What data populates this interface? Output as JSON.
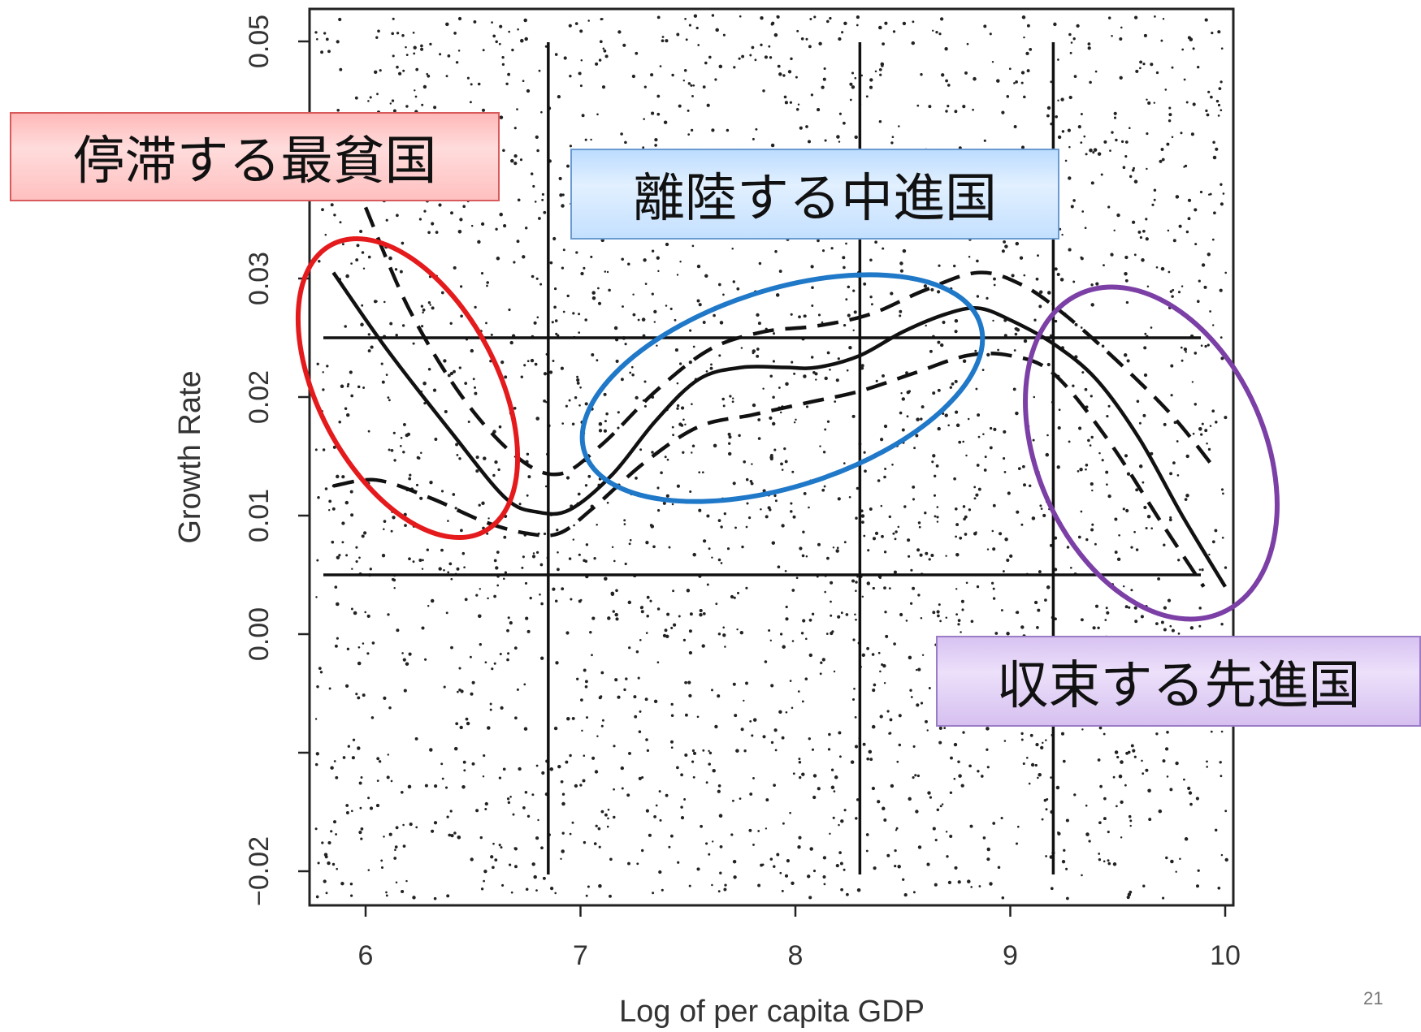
{
  "chart_data": {
    "type": "scatter",
    "xlabel": "Log of per capita GDP",
    "ylabel": "Growth Rate",
    "xlim": [
      5.75,
      10.05
    ],
    "ylim": [
      -0.022,
      0.053
    ],
    "x_ticks": [
      "6",
      "7",
      "8",
      "9",
      "10"
    ],
    "y_ticks": [
      "−0.02",
      "0.00",
      "0.01",
      "0.02",
      "0.03",
      "0.05"
    ],
    "vertical_lines_x": [
      6.85,
      8.3,
      9.2
    ],
    "horizontal_lines_y": [
      0.025,
      0.005
    ],
    "grid": false,
    "legend": "none",
    "series": [
      {
        "line_style": "solid",
        "x": [
          5.85,
          6.1,
          6.4,
          6.65,
          6.8,
          6.95,
          7.15,
          7.35,
          7.55,
          7.75,
          7.95,
          8.1,
          8.3,
          8.5,
          8.7,
          8.85,
          9.0,
          9.2,
          9.4,
          9.6,
          9.8,
          10.0
        ],
        "y": [
          0.0305,
          0.024,
          0.017,
          0.0115,
          0.0103,
          0.0105,
          0.0135,
          0.018,
          0.0215,
          0.0225,
          0.0225,
          0.0225,
          0.0235,
          0.0255,
          0.027,
          0.0275,
          0.0265,
          0.0245,
          0.0215,
          0.0165,
          0.01,
          0.004
        ]
      },
      {
        "line_style": "dashed",
        "x": [
          5.85,
          6.05,
          6.3,
          6.55,
          6.75,
          6.9,
          7.05,
          7.3,
          7.55,
          7.8,
          8.05,
          8.3,
          8.55,
          8.8,
          9.0,
          9.2,
          9.45,
          9.7,
          9.9
        ],
        "y": [
          0.0125,
          0.013,
          0.0115,
          0.0095,
          0.0085,
          0.0085,
          0.0105,
          0.0145,
          0.0175,
          0.0185,
          0.0195,
          0.0205,
          0.022,
          0.0235,
          0.0235,
          0.022,
          0.0165,
          0.0095,
          0.004
        ]
      },
      {
        "line_style": "dashed",
        "x": [
          6.0,
          6.2,
          6.45,
          6.7,
          6.9,
          7.1,
          7.35,
          7.6,
          7.85,
          8.1,
          8.35,
          8.6,
          8.85,
          9.05,
          9.25,
          9.5,
          9.75,
          9.95
        ],
        "y": [
          0.036,
          0.0275,
          0.02,
          0.015,
          0.0135,
          0.016,
          0.0205,
          0.024,
          0.0255,
          0.026,
          0.027,
          0.029,
          0.0305,
          0.0295,
          0.027,
          0.023,
          0.0185,
          0.014
        ]
      }
    ],
    "annotations": [
      {
        "text": "停滞する最貧国",
        "ellipse_color": "#e41a1c",
        "box_color": "#ffc8c8"
      },
      {
        "text": "離陸する中進国",
        "ellipse_color": "#1f78c8",
        "box_color": "#cfe6ff"
      },
      {
        "text": "収束する先進国",
        "ellipse_color": "#7b3fa6",
        "box_color": "#e4d4f6"
      }
    ]
  },
  "page_number": "21"
}
